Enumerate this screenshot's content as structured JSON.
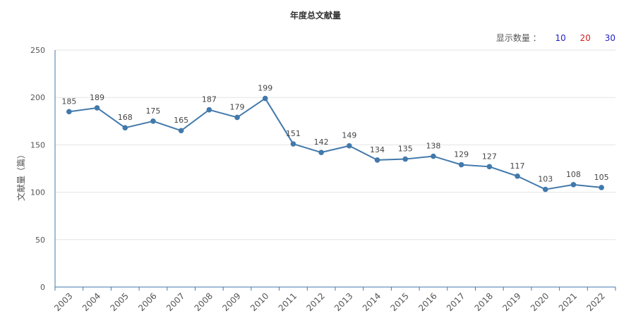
{
  "chart_data": {
    "type": "line",
    "title": "年度总文献量",
    "ylabel": "文献量（篇）",
    "xlabel": "",
    "ylim": [
      0,
      250
    ],
    "yticks": [
      0,
      50,
      100,
      150,
      200,
      250
    ],
    "grid": true,
    "categories": [
      "2003",
      "2004",
      "2005",
      "2006",
      "2007",
      "2008",
      "2009",
      "2010",
      "2011",
      "2012",
      "2013",
      "2014",
      "2015",
      "2016",
      "2017",
      "2018",
      "2019",
      "2020",
      "2021",
      "2022"
    ],
    "series": [
      {
        "values": [
          185,
          189,
          168,
          175,
          165,
          187,
          179,
          199,
          151,
          142,
          149,
          134,
          135,
          138,
          129,
          127,
          117,
          103,
          108,
          105
        ]
      }
    ],
    "colors": {
      "line": "#4279ab",
      "axis": "#4279ab",
      "grid": "#e3e3e3"
    }
  },
  "controls": {
    "label": "显示数量 ：",
    "options": [
      {
        "text": "10",
        "color": "#1f1fc8"
      },
      {
        "text": "20",
        "color": "#d21f1f"
      },
      {
        "text": "30",
        "color": "#1f1fc8"
      }
    ]
  }
}
